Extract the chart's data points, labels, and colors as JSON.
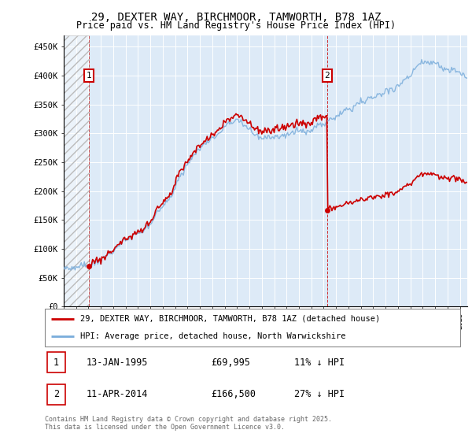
{
  "title_line1": "29, DEXTER WAY, BIRCHMOOR, TAMWORTH, B78 1AZ",
  "title_line2": "Price paid vs. HM Land Registry's House Price Index (HPI)",
  "ylim": [
    0,
    470000
  ],
  "yticks": [
    0,
    50000,
    100000,
    150000,
    200000,
    250000,
    300000,
    350000,
    400000,
    450000
  ],
  "ytick_labels": [
    "£0",
    "£50K",
    "£100K",
    "£150K",
    "£200K",
    "£250K",
    "£300K",
    "£350K",
    "£400K",
    "£450K"
  ],
  "bg_color": "#ddeaf7",
  "purchase1_date": 1995.04,
  "purchase1_price": 69995,
  "purchase2_date": 2014.27,
  "purchase2_price": 166500,
  "legend_line1": "29, DEXTER WAY, BIRCHMOOR, TAMWORTH, B78 1AZ (detached house)",
  "legend_line2": "HPI: Average price, detached house, North Warwickshire",
  "table_row1": [
    "1",
    "13-JAN-1995",
    "£69,995",
    "11% ↓ HPI"
  ],
  "table_row2": [
    "2",
    "11-APR-2014",
    "£166,500",
    "27% ↓ HPI"
  ],
  "footer": "Contains HM Land Registry data © Crown copyright and database right 2025.\nThis data is licensed under the Open Government Licence v3.0.",
  "red_color": "#cc0000",
  "blue_color": "#7aaddb",
  "vline_color": "#cc0000"
}
